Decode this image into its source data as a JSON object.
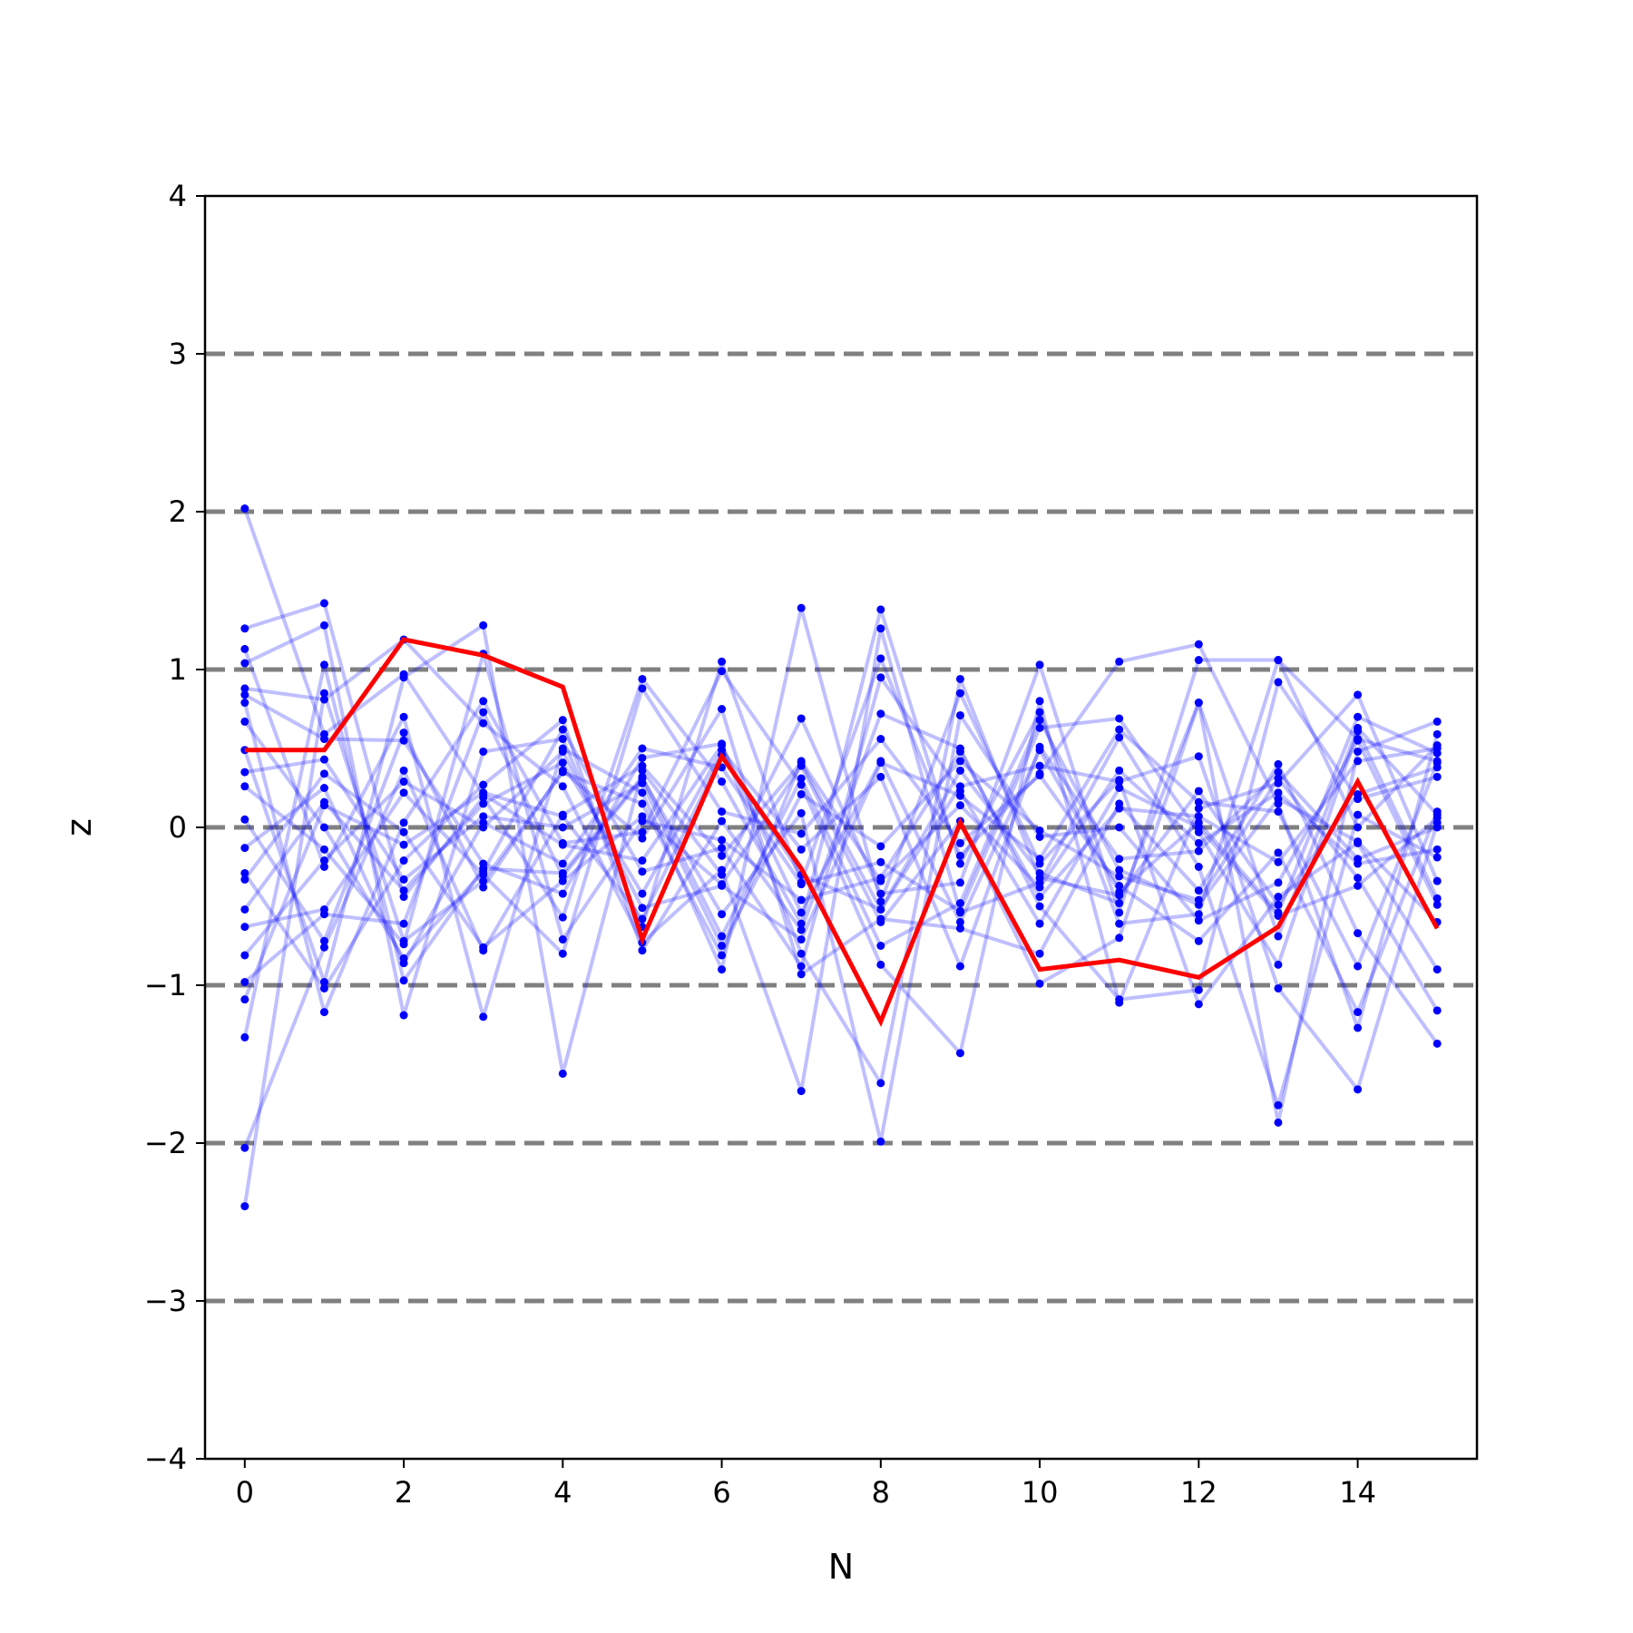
{
  "chart_data": {
    "type": "line",
    "xlabel": "N",
    "ylabel": "z",
    "xlim": [
      -0.5,
      15.5
    ],
    "ylim": [
      -4,
      4
    ],
    "x_ticks": [
      0,
      2,
      4,
      6,
      8,
      10,
      12,
      14
    ],
    "x_tick_labels": [
      "0",
      "2",
      "4",
      "6",
      "8",
      "10",
      "12",
      "14"
    ],
    "y_ticks": [
      -4,
      -3,
      -2,
      -1,
      0,
      1,
      2,
      3,
      4
    ],
    "y_tick_labels": [
      "−4",
      "−3",
      "−2",
      "−1",
      "0",
      "1",
      "2",
      "3",
      "4"
    ],
    "reference_lines": [
      -3,
      -2,
      -1,
      0,
      1,
      2,
      3
    ],
    "reference_line_color": "#808080",
    "background_series_color": "#0000ff",
    "highlight_color": "#ff0000",
    "x": [
      0,
      1,
      2,
      3,
      4,
      5,
      6,
      7,
      8,
      9,
      10,
      11,
      12,
      13,
      14,
      15
    ],
    "highlight": [
      0.49,
      0.49,
      1.19,
      1.09,
      0.89,
      -0.71,
      0.45,
      -0.26,
      -1.23,
      0.03,
      -0.9,
      -0.84,
      -0.95,
      -0.63,
      0.29,
      -0.64
    ],
    "series": [
      [
        2.02,
        0.59,
        0.97,
        0.21,
        -0.11,
        -0.21,
        0.52,
        -0.54,
        0.42,
        -0.6,
        0.49,
        -0.41,
        0.03,
        -0.54,
        0.7,
        0.47
      ],
      [
        -2.4,
        0.85,
        -0.72,
        -0.34,
        0.35,
        0.15,
        -0.81,
        0.42,
        -0.34,
        0.14,
        -0.38,
        0.36,
        -0.1,
        0.22,
        -0.23,
        -0.14
      ],
      [
        -2.03,
        -0.76,
        0.36,
        -0.78,
        0.08,
        0.39,
        -0.18,
        0.41,
        -0.52,
        0.36,
        -0.29,
        -0.48,
        0.79,
        -0.69,
        0.63,
        0.08
      ],
      [
        1.26,
        1.42,
        -0.44,
        0.19,
        -0.57,
        0.94,
        0.29,
        -0.61,
        1.38,
        -0.23,
        0.73,
        -0.61,
        -0.55,
        1.06,
        0.56,
        0.42
      ],
      [
        1.13,
        -0.25,
        0.7,
        -1.2,
        0.5,
        0.22,
        -0.9,
        1.39,
        -0.47,
        0.85,
        -0.23,
        0.3,
        -1.12,
        -0.44,
        -0.1,
        -0.9
      ],
      [
        1.04,
        1.28,
        -1.19,
        0.48,
        0.56,
        -0.63,
        1.05,
        -0.35,
        1.07,
        -0.18,
        0.34,
        1.05,
        1.16,
        0.15,
        -1.27,
        0.59
      ],
      [
        0.88,
        0.81,
        1.19,
        0.66,
        0.26,
        -0.73,
        -0.27,
        -1.67,
        1.26,
        -0.54,
        -0.35,
        0.57,
        -0.25,
        -1.76,
        0.08,
        -0.19
      ],
      [
        0.84,
        0.56,
        0.55,
        -0.23,
        -0.42,
        0.44,
        0.53,
        -0.8,
        -1.62,
        0.94,
        -0.32,
        -0.43,
        0.23,
        -0.49,
        0.21,
        0.38
      ],
      [
        0.79,
        -1.17,
        0.03,
        0.8,
        -0.1,
        -0.03,
        0.99,
        0.27,
        -0.87,
        -1.43,
        0.8,
        -1.11,
        0.12,
        0.28,
        0.84,
        -0.34
      ],
      [
        0.67,
        0.0,
        -0.83,
        -0.28,
        0.62,
        -0.28,
        -0.13,
        -0.88,
        0.95,
        0.23,
        -0.61,
        0.25,
        0.0,
        -0.56,
        -0.37,
        0.06
      ],
      [
        0.49,
        -0.98,
        0.95,
        1.28,
        -1.56,
        0.36,
        -0.3,
        0.69,
        -0.42,
        -0.35,
        1.03,
        -0.54,
        1.06,
        1.06,
        0.0,
        0.52
      ],
      [
        0.35,
        0.43,
        -0.33,
        0.07,
        0.0,
        0.28,
        -0.75,
        0.21,
        -0.12,
        0.42,
        -0.02,
        -0.31,
        -0.46,
        0.31,
        -0.32,
        -1.16
      ],
      [
        0.26,
        -0.14,
        -0.74,
        1.1,
        -0.71,
        0.04,
        -0.08,
        -0.46,
        -0.32,
        0.48,
        -0.44,
        0.12,
        0.07,
        -0.22,
        0.42,
        0.5
      ],
      [
        0.05,
        -0.72,
        0.6,
        -0.38,
        0.36,
        -0.07,
        0.75,
        -0.93,
        -0.58,
        -0.64,
        -0.8,
        0.15,
        -0.4,
        0.4,
        -0.67,
        -1.37
      ],
      [
        -0.13,
        0.25,
        -0.86,
        0.03,
        -0.23,
        0.5,
        0.38,
        -0.36,
        -0.22,
        -0.53,
        0.63,
        0.69,
        -0.03,
        -0.87,
        0.61,
        -0.45
      ],
      [
        -0.29,
        -1.02,
        -0.21,
        0.27,
        0.68,
        -0.78,
        0.04,
        -0.65,
        0.72,
        0.5,
        -0.5,
        -1.09,
        -1.03,
        0.92,
        0.18,
        0.32
      ],
      [
        -0.33,
        0.34,
        -0.03,
        -0.76,
        -0.34,
        0.07,
        -0.36,
        0.39,
        -0.6,
        0.04,
        -0.99,
        -0.7,
        0.79,
        -1.87,
        0.48,
        0.67
      ],
      [
        -0.52,
        0.16,
        -0.4,
        0.15,
        0.41,
        -0.42,
        0.49,
        -0.14,
        0.32,
        -0.88,
        0.51,
        -0.2,
        -0.15,
        0.35,
        -0.2,
        0.0
      ],
      [
        -0.63,
        -0.52,
        0.22,
        -0.3,
        -0.8,
        0.88,
        0.1,
        -0.04,
        0.56,
        -0.1,
        0.33,
        -0.37,
        -0.72,
        -0.16,
        -1.17,
        0.1
      ],
      [
        -0.81,
        -0.21,
        0.29,
        0.0,
        0.48,
        -0.51,
        -0.37,
        -0.71,
        0.41,
        0.2,
        -0.2,
        0.62,
        0.16,
        0.1,
        -0.88,
        0.41
      ],
      [
        -0.98,
        -0.55,
        -0.61,
        0.73,
        -0.31,
        0.31,
        -0.55,
        0.09,
        -1.99,
        0.71,
        -0.06,
        0.0,
        -0.59,
        -0.35,
        0.55,
        -0.49
      ],
      [
        -1.09,
        0.14,
        -0.11,
        0.22,
        0.07,
        -0.58,
        0.46,
        -0.3,
        -0.52,
        0.26,
        0.39,
        0.29,
        0.45,
        -1.02,
        -1.66,
        0.03
      ],
      [
        -1.33,
        1.03,
        -0.97,
        -0.26,
        -0.29,
        0.32,
        -0.69,
        0.31,
        -0.75,
        -0.48,
        0.68,
        -0.27,
        -0.49,
        0.18,
        -0.09,
        -0.6
      ]
    ]
  }
}
